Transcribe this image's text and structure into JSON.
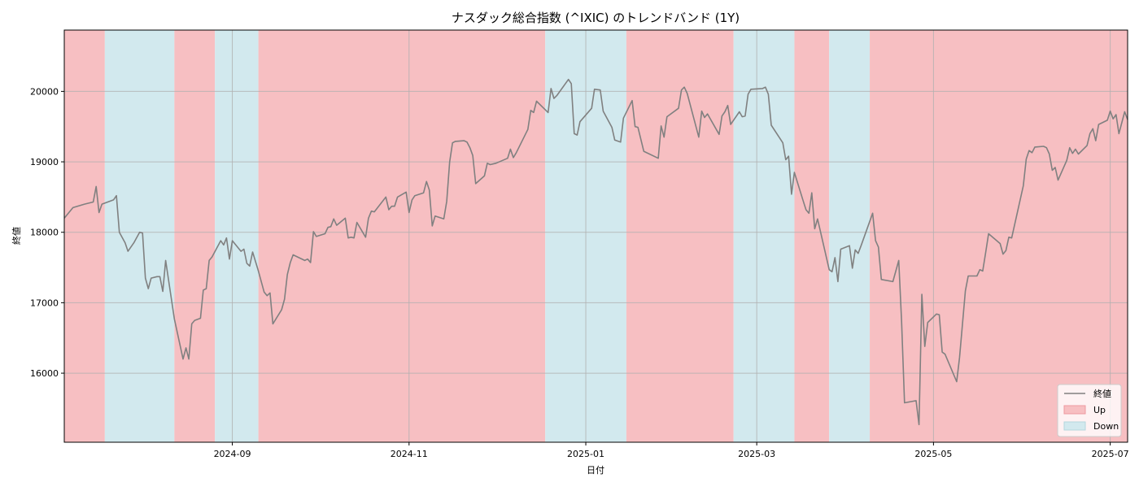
{
  "chart_data": {
    "type": "line",
    "title": "ナスダック総合指数 (^IXIC) のトレンドバンド (1Y)",
    "xlabel": "日付",
    "ylabel": "終値",
    "xlim": [
      "2024-07-05",
      "2025-07-07"
    ],
    "ylim": [
      15020,
      20870
    ],
    "grid": true,
    "legend_position": "lower-right",
    "x_ticks": [
      "2024-09",
      "2024-11",
      "2025-01",
      "2025-03",
      "2025-05",
      "2025-07"
    ],
    "y_ticks": [
      16000,
      17000,
      18000,
      19000,
      20000
    ],
    "colors": {
      "line": "#808080",
      "up": "#f7bfc2",
      "down": "#d2e9ee",
      "grid": "#b0b0b0"
    },
    "legend": [
      {
        "label": "終値",
        "kind": "line"
      },
      {
        "label": "Up",
        "kind": "up"
      },
      {
        "label": "Down",
        "kind": "down"
      }
    ],
    "bands": [
      {
        "trend": "Up",
        "start": "2024-07-05",
        "end": "2024-07-19"
      },
      {
        "trend": "Down",
        "start": "2024-07-19",
        "end": "2024-08-12"
      },
      {
        "trend": "Up",
        "start": "2024-08-12",
        "end": "2024-08-26"
      },
      {
        "trend": "Down",
        "start": "2024-08-26",
        "end": "2024-09-10"
      },
      {
        "trend": "Up",
        "start": "2024-09-10",
        "end": "2024-12-18"
      },
      {
        "trend": "Down",
        "start": "2024-12-18",
        "end": "2025-01-15"
      },
      {
        "trend": "Up",
        "start": "2025-01-15",
        "end": "2025-02-21"
      },
      {
        "trend": "Down",
        "start": "2025-02-21",
        "end": "2025-03-14"
      },
      {
        "trend": "Up",
        "start": "2025-03-14",
        "end": "2025-03-26"
      },
      {
        "trend": "Down",
        "start": "2025-03-26",
        "end": "2025-04-09"
      },
      {
        "trend": "Up",
        "start": "2025-04-09",
        "end": "2025-07-07"
      }
    ],
    "series": [
      {
        "name": "終値",
        "points": [
          [
            "2024-07-05",
            18200
          ],
          [
            "2024-07-08",
            18350
          ],
          [
            "2024-07-12",
            18400
          ],
          [
            "2024-07-15",
            18430
          ],
          [
            "2024-07-16",
            18650
          ],
          [
            "2024-07-17",
            18280
          ],
          [
            "2024-07-18",
            18400
          ],
          [
            "2024-07-22",
            18460
          ],
          [
            "2024-07-23",
            18520
          ],
          [
            "2024-07-24",
            18000
          ],
          [
            "2024-07-26",
            17850
          ],
          [
            "2024-07-27",
            17730
          ],
          [
            "2024-07-29",
            17850
          ],
          [
            "2024-07-31",
            18000
          ],
          [
            "2024-08-01",
            17990
          ],
          [
            "2024-08-02",
            17350
          ],
          [
            "2024-08-03",
            17200
          ],
          [
            "2024-08-04",
            17350
          ],
          [
            "2024-08-06",
            17370
          ],
          [
            "2024-08-07",
            17370
          ],
          [
            "2024-08-08",
            17160
          ],
          [
            "2024-08-09",
            17600
          ],
          [
            "2024-08-12",
            16770
          ],
          [
            "2024-08-15",
            16200
          ],
          [
            "2024-08-16",
            16360
          ],
          [
            "2024-08-17",
            16200
          ],
          [
            "2024-08-18",
            16700
          ],
          [
            "2024-08-19",
            16750
          ],
          [
            "2024-08-21",
            16780
          ],
          [
            "2024-08-22",
            17180
          ],
          [
            "2024-08-23",
            17200
          ],
          [
            "2024-08-24",
            17600
          ],
          [
            "2024-08-25",
            17650
          ],
          [
            "2024-08-28",
            17880
          ],
          [
            "2024-08-29",
            17820
          ],
          [
            "2024-08-30",
            17920
          ],
          [
            "2024-08-31",
            17620
          ],
          [
            "2024-09-01",
            17880
          ],
          [
            "2024-09-04",
            17730
          ],
          [
            "2024-09-05",
            17760
          ],
          [
            "2024-09-06",
            17560
          ],
          [
            "2024-09-07",
            17520
          ],
          [
            "2024-09-08",
            17720
          ],
          [
            "2024-09-10",
            17450
          ],
          [
            "2024-09-12",
            17150
          ],
          [
            "2024-09-13",
            17100
          ],
          [
            "2024-09-14",
            17140
          ],
          [
            "2024-09-15",
            16700
          ],
          [
            "2024-09-18",
            16900
          ],
          [
            "2024-09-19",
            17050
          ],
          [
            "2024-09-20",
            17400
          ],
          [
            "2024-09-21",
            17570
          ],
          [
            "2024-09-22",
            17680
          ],
          [
            "2024-09-26",
            17600
          ],
          [
            "2024-09-27",
            17620
          ],
          [
            "2024-09-28",
            17570
          ],
          [
            "2024-09-29",
            18010
          ],
          [
            "2024-09-30",
            17940
          ],
          [
            "2024-10-03",
            17980
          ],
          [
            "2024-10-04",
            18070
          ],
          [
            "2024-10-05",
            18080
          ],
          [
            "2024-10-06",
            18190
          ],
          [
            "2024-10-07",
            18100
          ],
          [
            "2024-10-10",
            18200
          ],
          [
            "2024-10-11",
            17920
          ],
          [
            "2024-10-12",
            17930
          ],
          [
            "2024-10-13",
            17920
          ],
          [
            "2024-10-14",
            18140
          ],
          [
            "2024-10-17",
            17930
          ],
          [
            "2024-10-18",
            18200
          ],
          [
            "2024-10-19",
            18300
          ],
          [
            "2024-10-20",
            18290
          ],
          [
            "2024-10-24",
            18500
          ],
          [
            "2024-10-25",
            18320
          ],
          [
            "2024-10-26",
            18370
          ],
          [
            "2024-10-27",
            18370
          ],
          [
            "2024-10-28",
            18500
          ],
          [
            "2024-10-31",
            18570
          ],
          [
            "2024-11-01",
            18280
          ],
          [
            "2024-11-02",
            18460
          ],
          [
            "2024-11-03",
            18520
          ],
          [
            "2024-11-06",
            18560
          ],
          [
            "2024-11-07",
            18720
          ],
          [
            "2024-11-08",
            18600
          ],
          [
            "2024-11-09",
            18090
          ],
          [
            "2024-11-10",
            18230
          ],
          [
            "2024-11-13",
            18190
          ],
          [
            "2024-11-14",
            18440
          ],
          [
            "2024-11-15",
            19000
          ],
          [
            "2024-11-16",
            19270
          ],
          [
            "2024-11-17",
            19290
          ],
          [
            "2024-11-20",
            19300
          ],
          [
            "2024-11-21",
            19280
          ],
          [
            "2024-11-22",
            19200
          ],
          [
            "2024-11-23",
            19090
          ],
          [
            "2024-11-24",
            18690
          ],
          [
            "2024-11-27",
            18800
          ],
          [
            "2024-11-28",
            18980
          ],
          [
            "2024-11-29",
            18960
          ],
          [
            "2024-12-01",
            18980
          ],
          [
            "2024-12-05",
            19050
          ],
          [
            "2024-12-06",
            19180
          ],
          [
            "2024-12-07",
            19060
          ],
          [
            "2024-12-08",
            19130
          ],
          [
            "2024-12-12",
            19460
          ],
          [
            "2024-12-13",
            19730
          ],
          [
            "2024-12-14",
            19700
          ],
          [
            "2024-12-15",
            19860
          ],
          [
            "2024-12-19",
            19700
          ],
          [
            "2024-12-20",
            20040
          ],
          [
            "2024-12-21",
            19900
          ],
          [
            "2024-12-22",
            19940
          ],
          [
            "2024-12-26",
            20170
          ],
          [
            "2024-12-27",
            20110
          ],
          [
            "2024-12-28",
            19400
          ],
          [
            "2024-12-29",
            19380
          ],
          [
            "2024-12-30",
            19570
          ],
          [
            "2025-01-03",
            19760
          ],
          [
            "2025-01-04",
            20030
          ],
          [
            "2025-01-06",
            20020
          ],
          [
            "2025-01-07",
            19720
          ],
          [
            "2025-01-10",
            19490
          ],
          [
            "2025-01-11",
            19310
          ],
          [
            "2025-01-13",
            19280
          ],
          [
            "2025-01-14",
            19620
          ],
          [
            "2025-01-17",
            19870
          ],
          [
            "2025-01-18",
            19500
          ],
          [
            "2025-01-19",
            19490
          ],
          [
            "2025-01-21",
            19150
          ],
          [
            "2025-01-26",
            19050
          ],
          [
            "2025-01-27",
            19510
          ],
          [
            "2025-01-28",
            19350
          ],
          [
            "2025-01-29",
            19640
          ],
          [
            "2025-02-02",
            19760
          ],
          [
            "2025-02-03",
            20020
          ],
          [
            "2025-02-04",
            20060
          ],
          [
            "2025-02-05",
            19970
          ],
          [
            "2025-02-09",
            19350
          ],
          [
            "2025-02-10",
            19720
          ],
          [
            "2025-02-11",
            19630
          ],
          [
            "2025-02-12",
            19680
          ],
          [
            "2025-02-16",
            19390
          ],
          [
            "2025-02-17",
            19650
          ],
          [
            "2025-02-18",
            19710
          ],
          [
            "2025-02-19",
            19800
          ],
          [
            "2025-02-20",
            19530
          ],
          [
            "2025-02-23",
            19710
          ],
          [
            "2025-02-24",
            19640
          ],
          [
            "2025-02-25",
            19650
          ],
          [
            "2025-02-26",
            19960
          ],
          [
            "2025-02-27",
            20030
          ],
          [
            "2025-03-03",
            20040
          ],
          [
            "2025-03-04",
            20060
          ],
          [
            "2025-03-05",
            19960
          ],
          [
            "2025-03-06",
            19520
          ],
          [
            "2025-03-10",
            19270
          ],
          [
            "2025-03-11",
            19030
          ],
          [
            "2025-03-12",
            19080
          ],
          [
            "2025-03-13",
            18540
          ],
          [
            "2025-03-14",
            18850
          ],
          [
            "2025-03-17",
            18450
          ],
          [
            "2025-03-18",
            18320
          ],
          [
            "2025-03-19",
            18270
          ],
          [
            "2025-03-20",
            18560
          ],
          [
            "2025-03-21",
            18050
          ],
          [
            "2025-03-22",
            18190
          ],
          [
            "2025-03-26",
            17470
          ],
          [
            "2025-03-27",
            17440
          ],
          [
            "2025-03-28",
            17640
          ],
          [
            "2025-03-29",
            17300
          ],
          [
            "2025-03-30",
            17760
          ],
          [
            "2025-04-02",
            17810
          ],
          [
            "2025-04-03",
            17490
          ],
          [
            "2025-04-04",
            17750
          ],
          [
            "2025-04-05",
            17700
          ],
          [
            "2025-04-06",
            17810
          ],
          [
            "2025-04-10",
            18270
          ],
          [
            "2025-04-11",
            17880
          ],
          [
            "2025-04-12",
            17790
          ],
          [
            "2025-04-13",
            17330
          ],
          [
            "2025-04-17",
            17300
          ],
          [
            "2025-04-19",
            17600
          ],
          [
            "2025-04-20",
            16730
          ],
          [
            "2025-04-21",
            15580
          ],
          [
            "2025-04-25",
            15610
          ],
          [
            "2025-04-26",
            15270
          ],
          [
            "2025-04-27",
            17120
          ],
          [
            "2025-04-28",
            16380
          ],
          [
            "2025-04-29",
            16720
          ],
          [
            "2025-05-02",
            16840
          ],
          [
            "2025-05-03",
            16830
          ],
          [
            "2025-05-04",
            16300
          ],
          [
            "2025-05-05",
            16270
          ],
          [
            "2025-05-09",
            15880
          ],
          [
            "2025-05-10",
            16220
          ],
          [
            "2025-05-12",
            17170
          ],
          [
            "2025-05-13",
            17380
          ],
          [
            "2025-05-16",
            17380
          ],
          [
            "2025-05-17",
            17470
          ],
          [
            "2025-05-18",
            17450
          ],
          [
            "2025-05-19",
            17710
          ],
          [
            "2025-05-20",
            17980
          ],
          [
            "2025-05-24",
            17840
          ],
          [
            "2025-05-25",
            17690
          ],
          [
            "2025-05-26",
            17740
          ],
          [
            "2025-05-27",
            17930
          ],
          [
            "2025-05-28",
            17920
          ],
          [
            "2025-06-01",
            18660
          ],
          [
            "2025-06-02",
            19040
          ],
          [
            "2025-06-03",
            19160
          ],
          [
            "2025-06-04",
            19130
          ],
          [
            "2025-06-05",
            19210
          ],
          [
            "2025-06-08",
            19220
          ],
          [
            "2025-06-09",
            19200
          ],
          [
            "2025-06-10",
            19110
          ],
          [
            "2025-06-11",
            18880
          ],
          [
            "2025-06-12",
            18920
          ],
          [
            "2025-06-13",
            18740
          ],
          [
            "2025-06-16",
            19020
          ],
          [
            "2025-06-17",
            19200
          ],
          [
            "2025-06-18",
            19120
          ],
          [
            "2025-06-19",
            19180
          ],
          [
            "2025-06-20",
            19110
          ],
          [
            "2025-06-23",
            19230
          ],
          [
            "2025-06-24",
            19400
          ],
          [
            "2025-06-25",
            19470
          ],
          [
            "2025-06-26",
            19300
          ],
          [
            "2025-06-27",
            19530
          ],
          [
            "2025-06-30",
            19590
          ],
          [
            "2025-07-01",
            19720
          ],
          [
            "2025-07-02",
            19610
          ],
          [
            "2025-07-03",
            19670
          ],
          [
            "2025-07-04",
            19400
          ],
          [
            "2025-07-06",
            19710
          ],
          [
            "2025-07-07",
            19600
          ]
        ]
      }
    ]
  }
}
